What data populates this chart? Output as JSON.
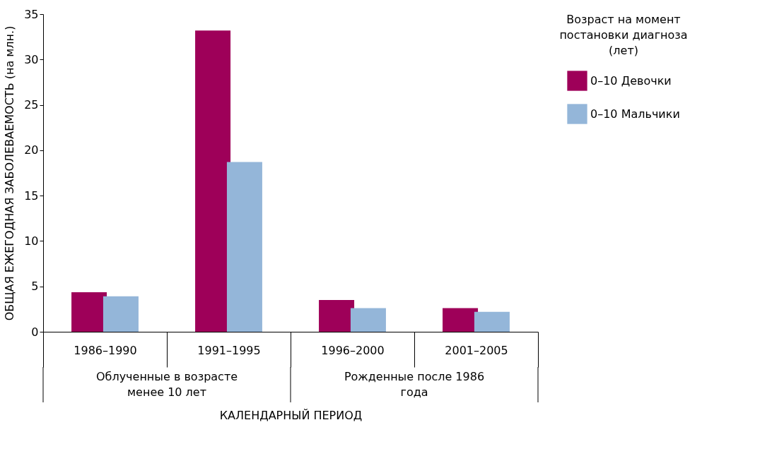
{
  "chart_data": {
    "type": "bar",
    "xlabel": "КАЛЕНДАРНЫЙ ПЕРИОД",
    "ylabel": "ОБЩАЯ ЕЖЕГОДНАЯ ЗАБОЛЕВАЕМОСТЬ (на млн.)",
    "legend_title": "Возраст на момент постановки диагноза (лет)",
    "categories": [
      "1986–1990",
      "1991–1995",
      "1996–2000",
      "2001–2005"
    ],
    "series": [
      {
        "name": "0–10 Девочки",
        "color": "#9e0059",
        "values": [
          4.35,
          33.2,
          3.5,
          2.6
        ]
      },
      {
        "name": "0–10 Мальчики",
        "color": "#94b6d9",
        "values": [
          3.9,
          18.7,
          2.6,
          2.2
        ]
      }
    ],
    "ylim": [
      0,
      35
    ],
    "yticks": [
      0,
      5,
      10,
      15,
      20,
      25,
      30,
      35
    ],
    "grid": false,
    "legend": "right",
    "annotations": [
      "Облученные в возрасте менее 10 лет",
      "Рожденные после 1986 года"
    ]
  }
}
